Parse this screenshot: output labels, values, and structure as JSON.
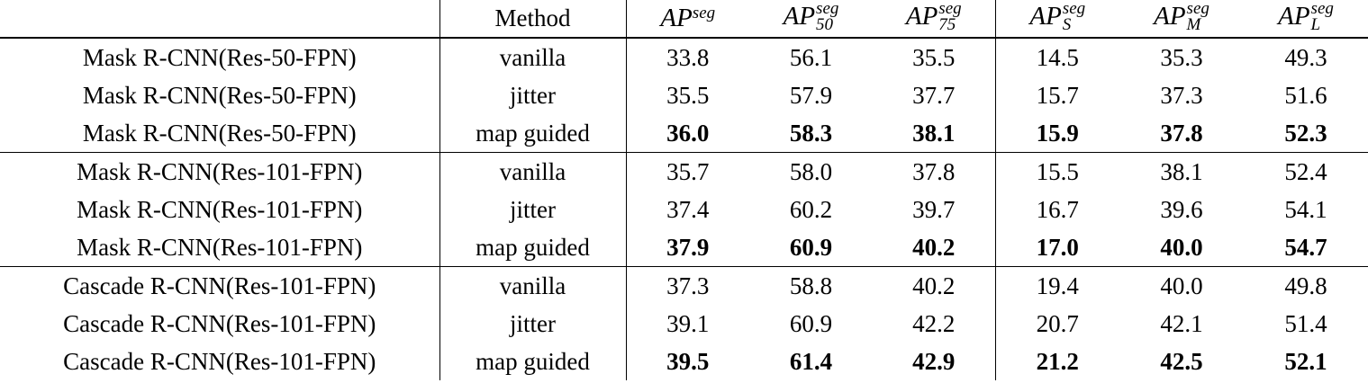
{
  "table": {
    "header": {
      "method": "Method",
      "metrics": [
        {
          "base": "AP",
          "sup": "seg"
        },
        {
          "base": "AP",
          "sup": "seg",
          "sub": "50"
        },
        {
          "base": "AP",
          "sup": "seg",
          "sub": "75"
        },
        {
          "base": "AP",
          "sup": "seg",
          "sub": "S"
        },
        {
          "base": "AP",
          "sup": "seg",
          "sub": "M"
        },
        {
          "base": "AP",
          "sup": "seg",
          "sub": "L"
        }
      ]
    },
    "groups": [
      {
        "rows": [
          {
            "model": "Mask R-CNN(Res-50-FPN)",
            "method": "vanilla",
            "values": [
              "33.8",
              "56.1",
              "35.5",
              "14.5",
              "35.3",
              "49.3"
            ],
            "bold": false
          },
          {
            "model": "Mask R-CNN(Res-50-FPN)",
            "method": "jitter",
            "values": [
              "35.5",
              "57.9",
              "37.7",
              "15.7",
              "37.3",
              "51.6"
            ],
            "bold": false
          },
          {
            "model": "Mask R-CNN(Res-50-FPN)",
            "method": "map guided",
            "values": [
              "36.0",
              "58.3",
              "38.1",
              "15.9",
              "37.8",
              "52.3"
            ],
            "bold": true
          }
        ]
      },
      {
        "rows": [
          {
            "model": "Mask R-CNN(Res-101-FPN)",
            "method": "vanilla",
            "values": [
              "35.7",
              "58.0",
              "37.8",
              "15.5",
              "38.1",
              "52.4"
            ],
            "bold": false
          },
          {
            "model": "Mask R-CNN(Res-101-FPN)",
            "method": "jitter",
            "values": [
              "37.4",
              "60.2",
              "39.7",
              "16.7",
              "39.6",
              "54.1"
            ],
            "bold": false
          },
          {
            "model": "Mask R-CNN(Res-101-FPN)",
            "method": "map guided",
            "values": [
              "37.9",
              "60.9",
              "40.2",
              "17.0",
              "40.0",
              "54.7"
            ],
            "bold": true
          }
        ]
      },
      {
        "rows": [
          {
            "model": "Cascade R-CNN(Res-101-FPN)",
            "method": "vanilla",
            "values": [
              "37.3",
              "58.8",
              "40.2",
              "19.4",
              "40.0",
              "49.8"
            ],
            "bold": false
          },
          {
            "model": "Cascade R-CNN(Res-101-FPN)",
            "method": "jitter",
            "values": [
              "39.1",
              "60.9",
              "42.2",
              "20.7",
              "42.1",
              "51.4"
            ],
            "bold": false
          },
          {
            "model": "Cascade R-CNN(Res-101-FPN)",
            "method": "map guided",
            "values": [
              "39.5",
              "61.4",
              "42.9",
              "21.2",
              "42.5",
              "52.1"
            ],
            "bold": true
          }
        ]
      }
    ]
  }
}
